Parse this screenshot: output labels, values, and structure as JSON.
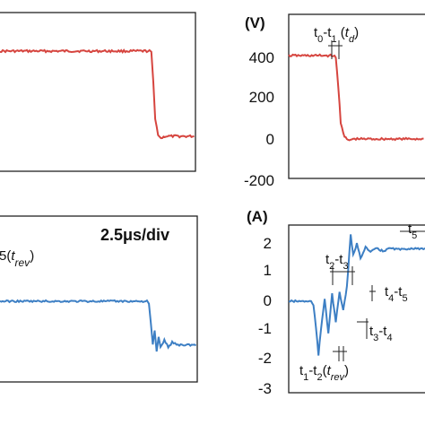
{
  "chart_data": [
    {
      "type": "line",
      "panel": "top-left",
      "series": [
        {
          "color": "#d6453f",
          "x": [
            -1.0,
            6.8,
            6.9,
            7.0,
            7.1,
            7.25,
            7.4,
            7.6,
            9.2
          ],
          "y": [
            400,
            400,
            395,
            250,
            80,
            10,
            -10,
            0,
            0
          ]
        }
      ]
    },
    {
      "type": "line",
      "panel": "top-right",
      "unit": "(V)",
      "yticks": [
        "400",
        "200",
        "0",
        "-200"
      ],
      "ylim": [
        -200,
        500
      ],
      "annotations": {
        "label_main": "t",
        "sub0": "0",
        "dash": "-t",
        "sub1": "1",
        "paren_open": " (",
        "italic": "t",
        "sub_d": "d",
        "paren_close": ")"
      },
      "series": [
        {
          "color": "#d6453f",
          "x": [
            0,
            1.8,
            1.9,
            2.0,
            2.1,
            2.25,
            2.4,
            2.6,
            5.5
          ],
          "y": [
            400,
            400,
            390,
            250,
            80,
            10,
            -8,
            0,
            0
          ]
        }
      ]
    },
    {
      "type": "line",
      "panel": "bottom-left",
      "scale_label": "2.5μs/div",
      "annotations": {
        "prefix": "5",
        "paren_open": "(",
        "italic": "t",
        "sub": "rev",
        "paren_close": ")"
      },
      "series": [
        {
          "color": "#3d7fc4",
          "x": [
            -1.0,
            6.6,
            6.7,
            6.8,
            6.9,
            7.0,
            7.1,
            7.2,
            7.3,
            7.5,
            7.7,
            7.9,
            8.2,
            9.2
          ],
          "y": [
            0,
            0,
            -0.1,
            -0.9,
            -1.8,
            -1.2,
            -2.1,
            -1.5,
            -1.9,
            -1.6,
            -1.9,
            -1.7,
            -1.8,
            -1.8
          ]
        }
      ]
    },
    {
      "type": "line",
      "panel": "bottom-right",
      "unit": "(A)",
      "yticks": [
        "2",
        "1",
        "0",
        "-1",
        "-2",
        "-3"
      ],
      "ylim": [
        -3,
        2.5
      ],
      "annotations": {
        "t23": {
          "a": "t",
          "s1": "2",
          "b": "-t",
          "s2": "3"
        },
        "t45": {
          "a": "t",
          "s1": "4",
          "b": "-t",
          "s2": "5"
        },
        "t34": {
          "a": "t",
          "s1": "3",
          "b": "-t",
          "s2": "4"
        },
        "t12": {
          "a": "t",
          "s1": "1",
          "b": "-t",
          "s2": "2",
          "c": "(",
          "it": "t",
          "s3": "rev",
          "d": ")"
        },
        "t5x": {
          "a": "t",
          "s1": "5"
        }
      },
      "series": [
        {
          "color": "#3d7fc4",
          "x": [
            0,
            0.9,
            1.0,
            1.1,
            1.2,
            1.3,
            1.45,
            1.6,
            1.75,
            1.9,
            2.05,
            2.2,
            2.35,
            2.5,
            2.6,
            2.75,
            2.9,
            3.1,
            3.3,
            3.5,
            3.8,
            4.1,
            4.5,
            5.0,
            5.6
          ],
          "y": [
            0,
            0,
            -0.15,
            -0.9,
            -1.9,
            -1.0,
            0.1,
            -1.1,
            0.25,
            -0.7,
            0.3,
            -0.3,
            0.5,
            2.3,
            1.6,
            2.0,
            1.5,
            1.9,
            1.7,
            1.85,
            1.75,
            1.85,
            1.8,
            1.85,
            1.8
          ]
        }
      ]
    }
  ]
}
